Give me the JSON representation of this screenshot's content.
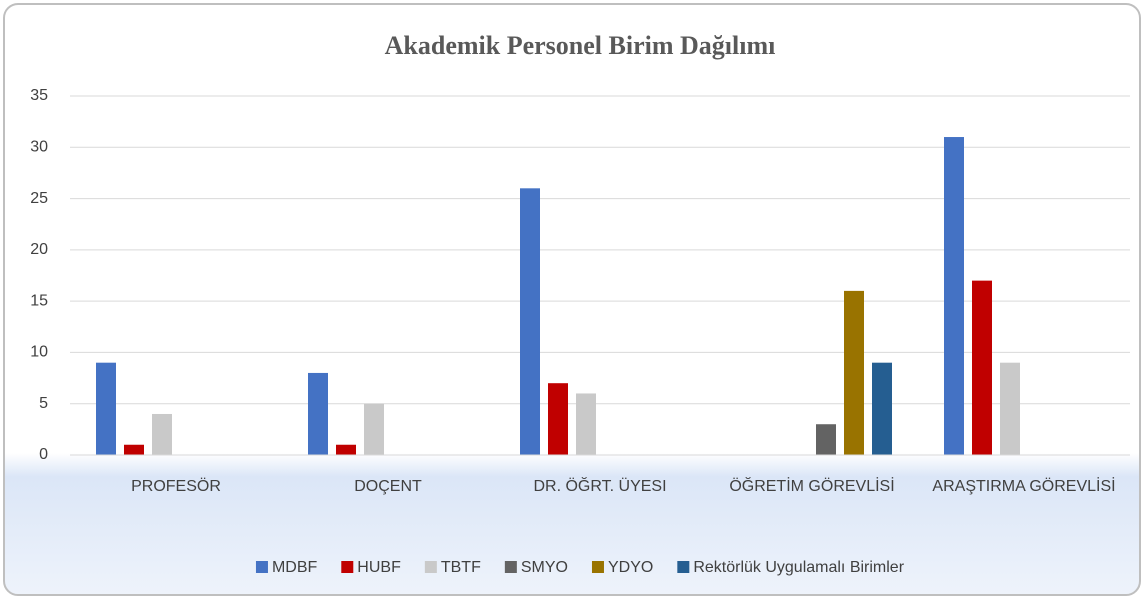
{
  "chart_data": {
    "type": "bar",
    "title": "Akademik Personel Birim Dağılımı",
    "categories": [
      "PROFESÖR",
      "DOÇENT",
      "DR. ÖĞRT.  ÜYESI",
      "ÖĞRETİM GÖREVLİSİ",
      "ARAŞTIRMA GÖREVLİSİ"
    ],
    "series": [
      {
        "name": "MDBF",
        "color": "#4472c4",
        "values": [
          9,
          8,
          26,
          0,
          31
        ]
      },
      {
        "name": "HUBF",
        "color": "#c00000",
        "values": [
          1,
          1,
          7,
          0,
          17
        ]
      },
      {
        "name": "TBTF",
        "color": "#c9c9c9",
        "values": [
          4,
          5,
          6,
          0,
          9
        ]
      },
      {
        "name": "SMYO",
        "color": "#636363",
        "values": [
          0,
          0,
          0,
          3,
          0
        ]
      },
      {
        "name": "YDYO",
        "color": "#997300",
        "values": [
          0,
          0,
          0,
          16,
          0
        ]
      },
      {
        "name": "Rektörlük Uygulamalı Birimler",
        "color": "#255e91",
        "values": [
          0,
          0,
          0,
          9,
          0
        ]
      }
    ],
    "ylim": [
      0,
      35
    ],
    "yticks": [
      0,
      5,
      10,
      15,
      20,
      25,
      30,
      35
    ],
    "grid": true,
    "legend": "bottom"
  }
}
